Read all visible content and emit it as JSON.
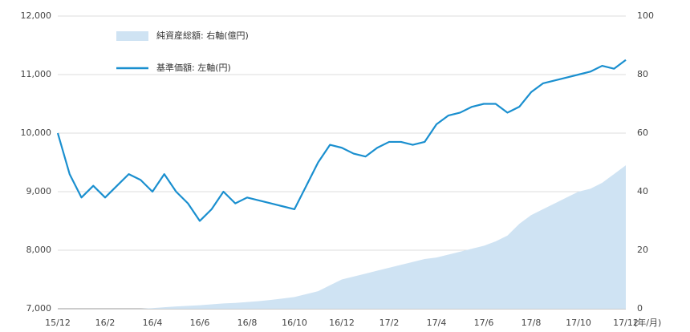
{
  "chart_data": {
    "type": "line",
    "x_unit_label": "(年/月)",
    "categories": [
      "15/12",
      null,
      null,
      null,
      "16/2",
      null,
      null,
      null,
      "16/4",
      null,
      null,
      null,
      "16/6",
      null,
      null,
      null,
      "16/8",
      null,
      null,
      null,
      "16/10",
      null,
      null,
      null,
      "16/12",
      null,
      null,
      null,
      "17/2",
      null,
      null,
      null,
      "17/4",
      null,
      null,
      null,
      "17/6",
      null,
      null,
      null,
      "17/8",
      null,
      null,
      null,
      "17/10",
      null,
      null,
      null,
      "17/12"
    ],
    "series": [
      {
        "name": "純資産総額: 右軸(億円)",
        "kind": "area",
        "axis": "y2",
        "color": "#cfe3f3",
        "values": [
          0,
          0,
          0,
          0,
          0,
          0,
          0,
          0,
          0.2,
          0.5,
          0.8,
          1,
          1.2,
          1.5,
          1.8,
          2,
          2.3,
          2.6,
          3,
          3.5,
          4,
          5,
          6,
          8,
          10,
          11,
          12,
          13,
          14,
          15,
          16,
          17,
          17.5,
          18.5,
          19.5,
          20.5,
          21.5,
          23,
          25,
          29,
          32,
          34,
          36,
          38,
          40,
          41,
          43,
          46,
          49
        ]
      },
      {
        "name": "基準価額: 左軸(円)",
        "kind": "line",
        "axis": "y",
        "color": "#1a8fcf",
        "values": [
          10000,
          9300,
          8900,
          9100,
          8900,
          9100,
          9300,
          9200,
          9000,
          9300,
          9000,
          8800,
          8500,
          8700,
          9000,
          8800,
          8900,
          8850,
          8800,
          8750,
          8700,
          9100,
          9500,
          9800,
          9750,
          9650,
          9600,
          9750,
          9850,
          9850,
          9800,
          9850,
          10150,
          10300,
          10350,
          10450,
          10500,
          10500,
          10350,
          10450,
          10700,
          10850,
          10900,
          10950,
          11000,
          11050,
          11150,
          11100,
          11250
        ]
      }
    ],
    "ylim": [
      7000,
      12000
    ],
    "yticks": [
      {
        "value": 7000,
        "label": "7,000"
      },
      {
        "value": 8000,
        "label": "8,000"
      },
      {
        "value": 9000,
        "label": "9,000"
      },
      {
        "value": 10000,
        "label": "10,000"
      },
      {
        "value": 11000,
        "label": "11,000"
      },
      {
        "value": 12000,
        "label": "12,000"
      }
    ],
    "y2lim": [
      0,
      100
    ],
    "y2ticks": [
      0,
      20,
      40,
      60,
      80,
      100
    ],
    "grid": true,
    "legend": "upper-left"
  }
}
